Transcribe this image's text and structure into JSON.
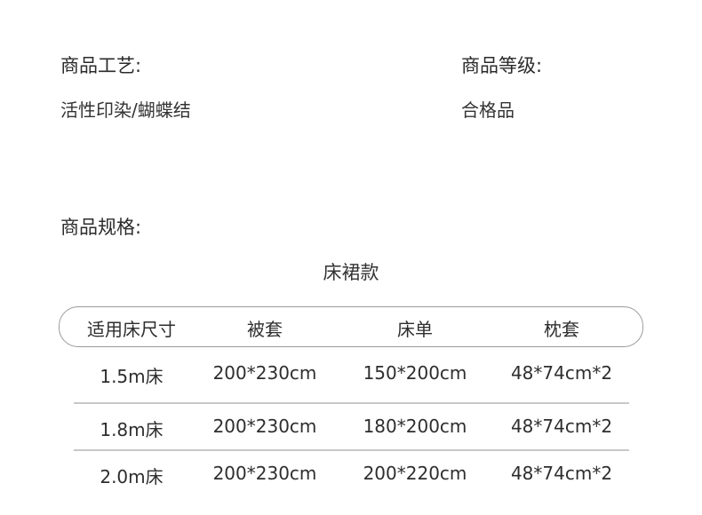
{
  "craft": {
    "label": "商品工艺:",
    "value": "活性印染/蝴蝶结"
  },
  "grade": {
    "label": "商品等级:",
    "value": "合格品"
  },
  "spec": {
    "label": "商品规格:",
    "subtitle": "床裙款",
    "headers": [
      "适用床尺寸",
      "被套",
      "床单",
      "枕套"
    ],
    "rows": [
      [
        "1.5m床",
        "200*230cm",
        "150*200cm",
        "48*74cm*2"
      ],
      [
        "1.8m床",
        "200*230cm",
        "180*200cm",
        "48*74cm*2"
      ],
      [
        "2.0m床",
        "200*230cm",
        "200*220cm",
        "48*74cm*2"
      ]
    ]
  }
}
